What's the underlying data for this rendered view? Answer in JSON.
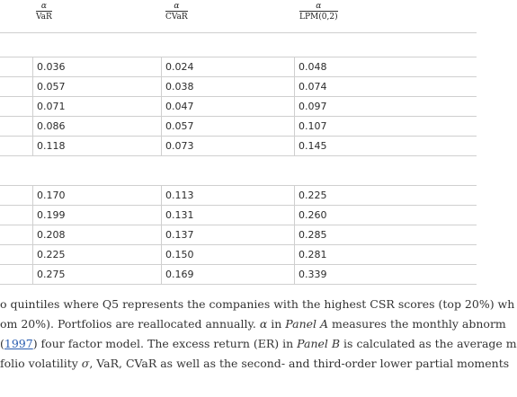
{
  "table": {
    "headers": [
      {
        "top": "α",
        "label": "VaR"
      },
      {
        "top": "α",
        "label": "CVaR"
      },
      {
        "top": "α",
        "label": "LPM(0,2)"
      }
    ],
    "panel_a_rows": [
      [
        "0.036",
        "0.024",
        "0.048"
      ],
      [
        "0.057",
        "0.038",
        "0.074"
      ],
      [
        "0.071",
        "0.047",
        "0.097"
      ],
      [
        "0.086",
        "0.057",
        "0.107"
      ],
      [
        "0.118",
        "0.073",
        "0.145"
      ]
    ],
    "panel_b_rows": [
      [
        "0.170",
        "0.113",
        "0.225"
      ],
      [
        "0.199",
        "0.131",
        "0.260"
      ],
      [
        "0.208",
        "0.137",
        "0.285"
      ],
      [
        "0.225",
        "0.150",
        "0.281"
      ],
      [
        "0.275",
        "0.169",
        "0.339"
      ]
    ]
  },
  "note": {
    "line1": "o quintiles where Q5 represents the companies with the highest CSR scores (top 20%) wh",
    "line2_pre": "om 20%). Portfolios are reallocated annually. ",
    "alpha": "α",
    "line2_mid": " in ",
    "panel_a": "Panel A",
    "line2_post": " measures the monthly abnorm",
    "line3_pre": "(",
    "cite_year": "1997",
    "line3_mid": ") four factor model. The excess return (ER) in ",
    "panel_b": "Panel B",
    "line3_post": " is calculated as the average m",
    "line4_pre": "folio volatility ",
    "sigma": "σ",
    "line4_post": ", VaR, CVaR as well as the second- and third-order lower partial moments"
  }
}
